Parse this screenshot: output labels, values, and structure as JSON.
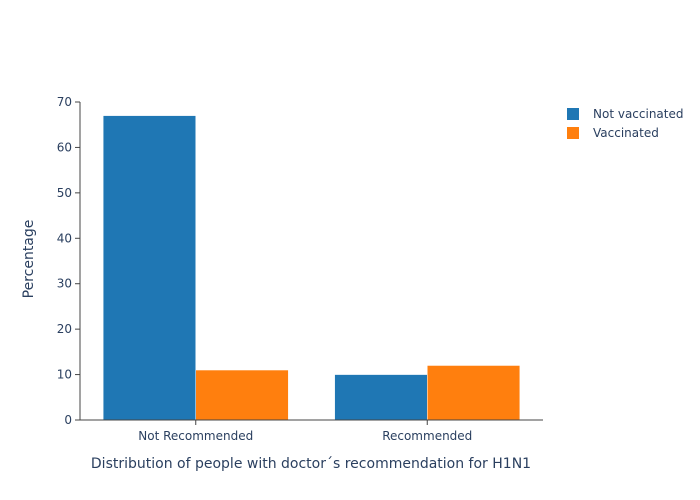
{
  "chart_data": {
    "type": "bar",
    "categories": [
      "Not Recommended",
      "Recommended"
    ],
    "series": [
      {
        "name": "Not vaccinated",
        "values": [
          67,
          10
        ],
        "color": "#1f77b4"
      },
      {
        "name": "Vaccinated",
        "values": [
          11,
          12
        ],
        "color": "#ff7f0e"
      }
    ],
    "xlabel": "Distribution of people with doctor´s recommendation for H1N1",
    "ylabel": "Percentage",
    "ylim": [
      0,
      70
    ],
    "yticks": [
      0,
      10,
      20,
      30,
      40,
      50,
      60,
      70
    ],
    "grid": false,
    "legend_position": "top-right"
  }
}
